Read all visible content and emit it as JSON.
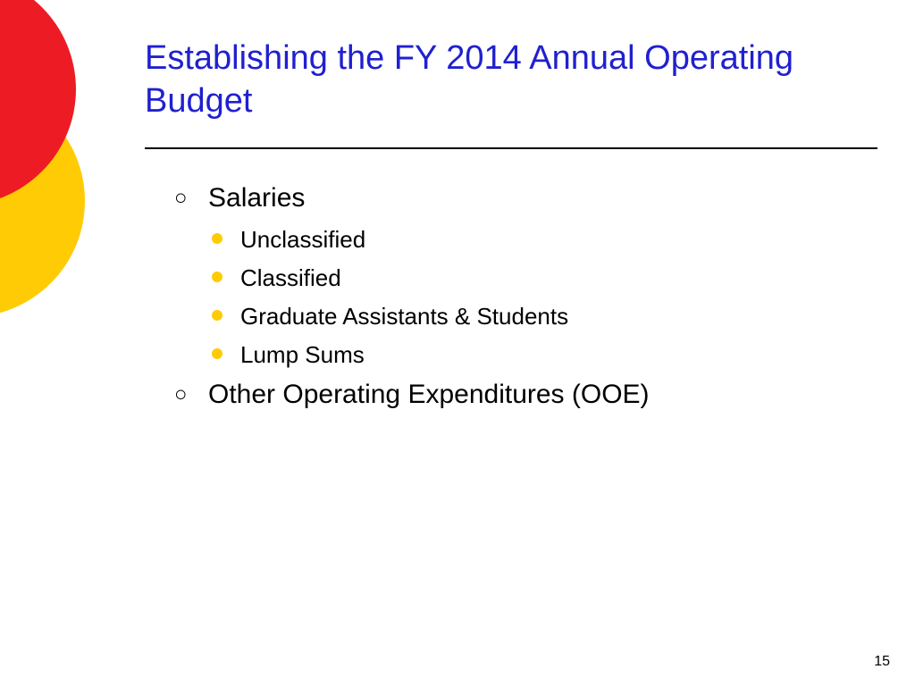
{
  "colors": {
    "title": "#2020d0",
    "red": "#ed1c24",
    "yellow": "#ffcb05",
    "sub_bullet": "#ffcb05",
    "background": "#ffffff"
  },
  "title": "Establishing the FY 2014 Annual Operating Budget",
  "bullets": [
    {
      "text": "Salaries",
      "sub": [
        "Unclassified",
        "Classified",
        "Graduate Assistants & Students",
        "Lump Sums"
      ]
    },
    {
      "text": "Other Operating Expenditures (OOE)",
      "sub": []
    }
  ],
  "page_number": "15"
}
